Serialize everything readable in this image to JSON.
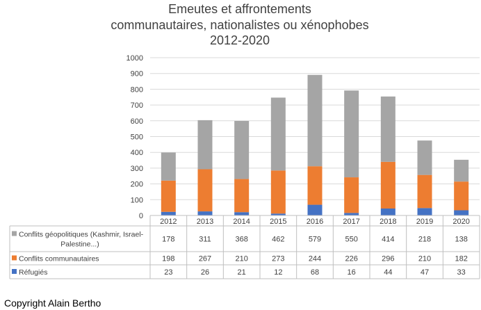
{
  "chart_data": {
    "type": "bar",
    "stacked": true,
    "title": [
      "Emeutes et affrontements",
      "communautaires, nationalistes ou xénophobes",
      "2012-2020"
    ],
    "categories": [
      "2012",
      "2013",
      "2014",
      "2015",
      "2016",
      "2017",
      "2018",
      "2019",
      "2020"
    ],
    "ylim": [
      0,
      1000
    ],
    "yticks": [
      0,
      100,
      200,
      300,
      400,
      500,
      600,
      700,
      800,
      900,
      1000
    ],
    "grid": true,
    "legend_position": "data-table",
    "series": [
      {
        "name": "Réfugiés",
        "color": "#4472C4",
        "values": [
          23,
          26,
          21,
          12,
          68,
          16,
          44,
          47,
          33
        ]
      },
      {
        "name": "Conflits communautaires",
        "color": "#ED7D31",
        "values": [
          198,
          267,
          210,
          273,
          244,
          226,
          296,
          210,
          182
        ]
      },
      {
        "name": "Conflits géopolitiques (Kashmir, Israel-Palestine...)",
        "label_lines": [
          "Conflits géopolitiques (Kashmir, Israel-",
          "Palestine...)"
        ],
        "color": "#A5A5A5",
        "values": [
          178,
          311,
          368,
          462,
          579,
          550,
          414,
          218,
          138
        ]
      }
    ],
    "table_order": [
      2,
      1,
      0
    ]
  },
  "footer": {
    "copyright": "Copyright Alain Bertho"
  }
}
